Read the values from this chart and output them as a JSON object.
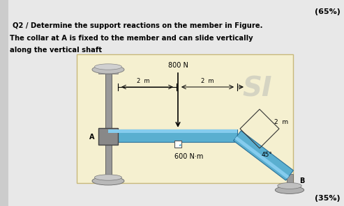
{
  "bg_color": "#f5f0d0",
  "page_bg": "#e8e8e8",
  "line1": "Q2 / Determine the support reactions on the member in Figure.",
  "line2": "The collar at A is fixed to the member and can slide vertically",
  "line3": "along the vertical shaft",
  "top_right_text": "(65%)",
  "bottom_right_text": "(35%)",
  "force_label": "800 N",
  "moment_label": "600 N·m",
  "dim1": "2  m",
  "dim2": "2  m",
  "dim3": "2  m",
  "angle_label": "45°",
  "point_a": "A",
  "point_b": "B",
  "bar_color": "#5aafd0",
  "bar_dark": "#2a7099",
  "bar_highlight": "#85ccee",
  "watermark": "SI",
  "watermark_color": "#d0cfc0"
}
